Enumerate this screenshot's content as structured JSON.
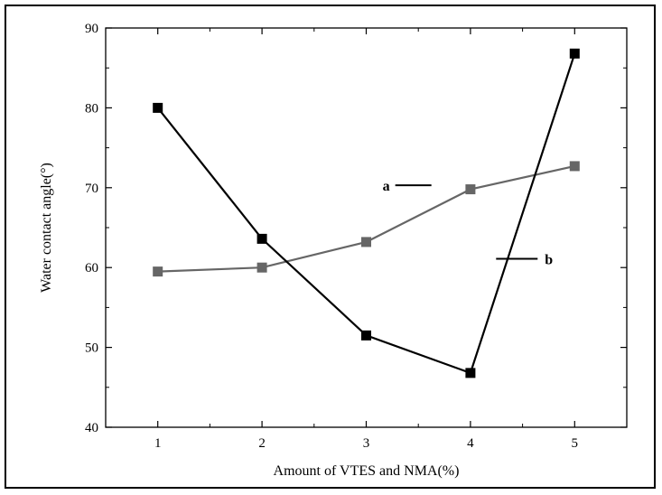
{
  "chart_data": {
    "type": "line",
    "title": "",
    "xlabel": "Amount  of VTES and NMA(%)",
    "ylabel": "Water contact angle(°)",
    "x": [
      1,
      2,
      3,
      4,
      5
    ],
    "xlim": [
      0.5,
      5.5
    ],
    "ylim": [
      40,
      90
    ],
    "xticks": [
      1,
      2,
      3,
      4,
      5
    ],
    "yticks": [
      40,
      50,
      60,
      70,
      80,
      90
    ],
    "grid": false,
    "legend": "none",
    "series": [
      {
        "name": "a",
        "values": [
          59.5,
          60.0,
          63.2,
          69.8,
          72.7
        ],
        "color": "#666666"
      },
      {
        "name": "b",
        "values": [
          80.0,
          63.6,
          51.5,
          46.8,
          86.8
        ],
        "color": "#000000"
      }
    ],
    "annotations": [
      {
        "text": "a",
        "series": "a",
        "at_x": 3.4,
        "at_y": 70.3
      },
      {
        "text": "b",
        "series": "b",
        "at_x": 4.35,
        "at_y": 61.1
      }
    ]
  }
}
